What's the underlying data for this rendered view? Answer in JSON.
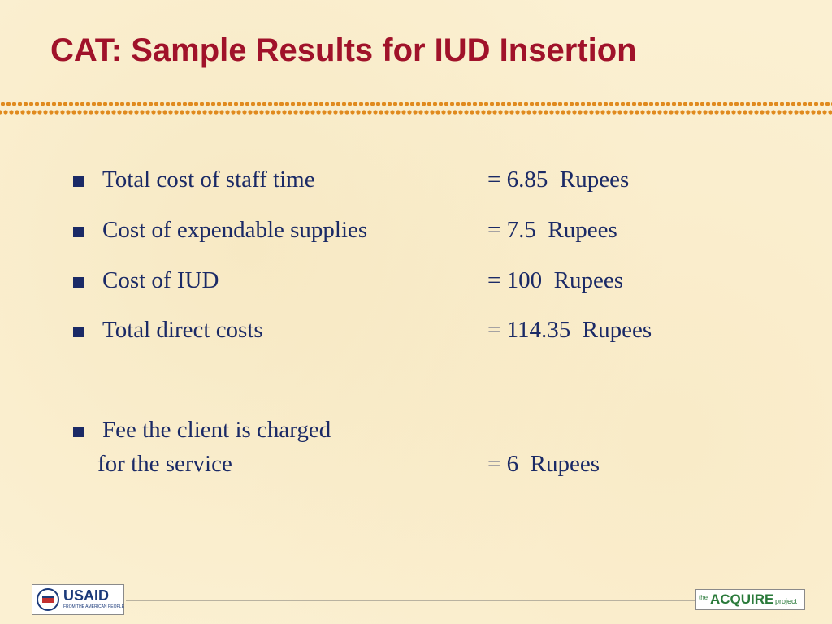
{
  "header": {
    "title": "CAT: Sample Results for IUD Insertion"
  },
  "items": [
    {
      "lines": [
        "Total cost of staff time"
      ],
      "value": "= 6.85  Rupees"
    },
    {
      "lines": [
        "Cost of expendable supplies"
      ],
      "value": "= 7.5  Rupees"
    },
    {
      "lines": [
        "Cost of IUD"
      ],
      "value": "= 100  Rupees"
    },
    {
      "lines": [
        "Total direct costs"
      ],
      "value": "= 114.35  Rupees"
    },
    {
      "lines": [
        "Fee the client is charged",
        "for the service"
      ],
      "value": "= 6  Rupees"
    }
  ],
  "footer": {
    "usaid": {
      "name": "USAID",
      "tagline": "FROM THE AMERICAN PEOPLE"
    },
    "acquire": {
      "prefix": "the",
      "name": "ACQUIRE",
      "suffix": "project"
    }
  }
}
